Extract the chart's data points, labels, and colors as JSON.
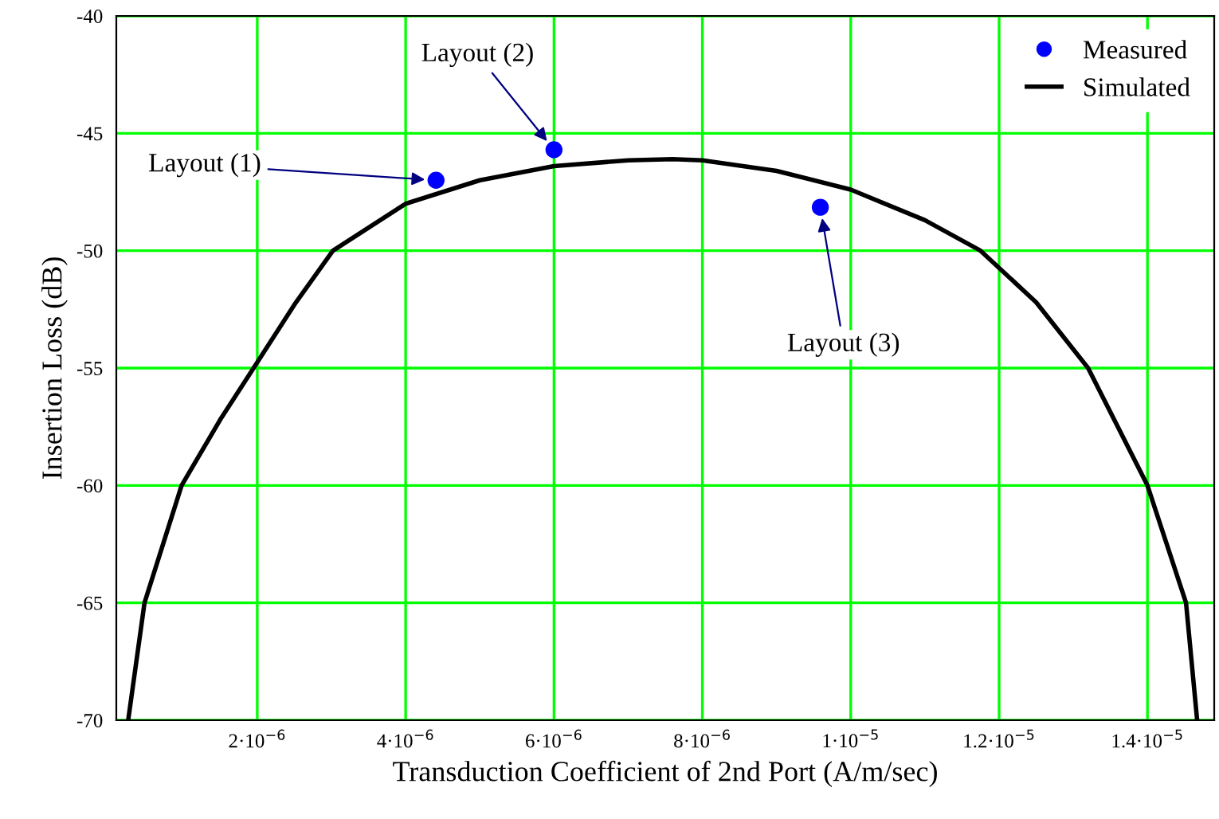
{
  "chart_data": {
    "type": "line",
    "xlabel": "Transduction Coefficient of 2nd Port (A/m/sec)",
    "ylabel": "Insertion Loss (dB)",
    "series": [
      {
        "name": "Measured",
        "type": "scatter",
        "color": "#0000ff",
        "marker": "circle",
        "x": [
          4.41e-06,
          6e-06,
          9.59e-06
        ],
        "values": [
          -47.0,
          -45.7,
          -48.15
        ]
      },
      {
        "name": "Simulated",
        "color": "#000000",
        "marker": "none",
        "x": [
          2.6e-07,
          4.8e-07,
          9.8e-07,
          1.5e-06,
          1.95e-06,
          2.5e-06,
          3.02e-06,
          4e-06,
          5e-06,
          6e-06,
          7e-06,
          7.6e-06,
          8e-06,
          9e-06,
          1e-05,
          1.1e-05,
          1.175e-05,
          1.25e-05,
          1.32e-05,
          1.4e-05,
          1.452e-05,
          1.467e-05
        ],
        "values": [
          -70,
          -65,
          -60,
          -57.2,
          -55,
          -52.3,
          -50,
          -48.0,
          -47.0,
          -46.4,
          -46.15,
          -46.1,
          -46.15,
          -46.6,
          -47.4,
          -48.7,
          -50,
          -52.2,
          -55,
          -60,
          -65,
          -70
        ]
      }
    ],
    "xlim": [
      1e-07,
      1.49e-05
    ],
    "xticks": [
      {
        "value": 2e-06,
        "label": "2·10$^{−6}$"
      },
      {
        "value": 4e-06,
        "label": "4·10$^{−6}$"
      },
      {
        "value": 6e-06,
        "label": "6·10$^{−6}$"
      },
      {
        "value": 8e-06,
        "label": "8·10$^{−6}$"
      },
      {
        "value": 1e-05,
        "label": "1·10$^{−5}$"
      },
      {
        "value": 1.2e-05,
        "label": "1.2·10$^{−5}$"
      },
      {
        "value": 1.4e-05,
        "label": "1.4·10$^{−5}$"
      }
    ],
    "ylim": [
      -70,
      -40
    ],
    "yticks": [
      -70,
      -65,
      -60,
      -55,
      -50,
      -45,
      -40
    ],
    "grid": true,
    "legend": "top right",
    "annotations": [
      {
        "text": "Layout (1)",
        "x": 4.41e-06,
        "y": -47.0
      },
      {
        "text": "Layout (2)",
        "x": 6e-06,
        "y": -45.7
      },
      {
        "text": "Layout (3)",
        "x": 9.59e-06,
        "y": -48.15
      }
    ]
  }
}
